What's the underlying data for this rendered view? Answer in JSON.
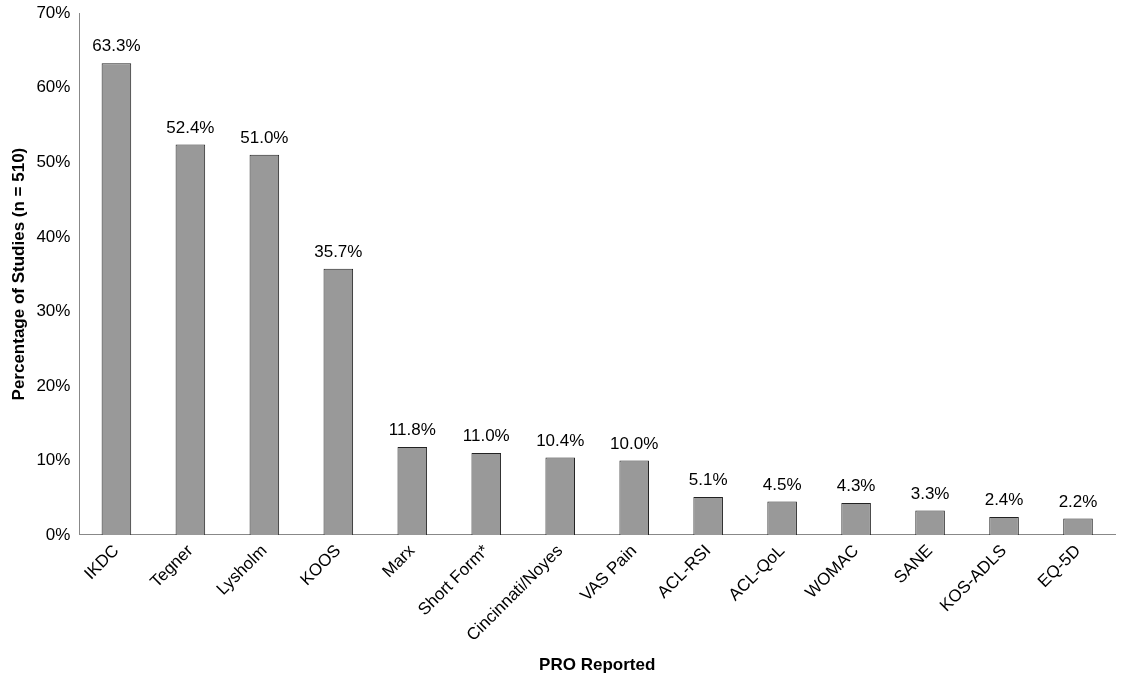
{
  "chart_data": {
    "type": "bar",
    "xlabel": "PRO Reported",
    "ylabel": "Percentage of Studies (n = 510)",
    "categories": [
      "IKDC",
      "Tegner",
      "Lysholm",
      "KOOS",
      "Marx",
      "Short Form*",
      "Cincinnati/Noyes",
      "VAS Pain",
      "ACL-RSI",
      "ACL-QoL",
      "WOMAC",
      "SANE",
      "KOS-ADLS",
      "EQ-5D"
    ],
    "values": [
      63.3,
      52.4,
      51.0,
      35.7,
      11.8,
      11.0,
      10.4,
      10.0,
      5.1,
      4.5,
      4.3,
      3.3,
      2.4,
      2.2
    ],
    "value_labels": [
      "63.3%",
      "52.4%",
      "51.0%",
      "35.7%",
      "11.8%",
      "11.0%",
      "10.4%",
      "10.0%",
      "5.1%",
      "4.5%",
      "4.3%",
      "3.3%",
      "2.4%",
      "2.2%"
    ],
    "color": "#999999",
    "ylim": [
      0,
      70
    ],
    "yticks": [
      {
        "value": 0,
        "label": "0%"
      },
      {
        "value": 10,
        "label": "10%"
      },
      {
        "value": 20,
        "label": "20%"
      },
      {
        "value": 30,
        "label": "30%"
      },
      {
        "value": 40,
        "label": "40%"
      },
      {
        "value": 50,
        "label": "50%"
      },
      {
        "value": 60,
        "label": "60%"
      },
      {
        "value": 70,
        "label": "70%"
      }
    ],
    "grid": false,
    "legend": false
  }
}
